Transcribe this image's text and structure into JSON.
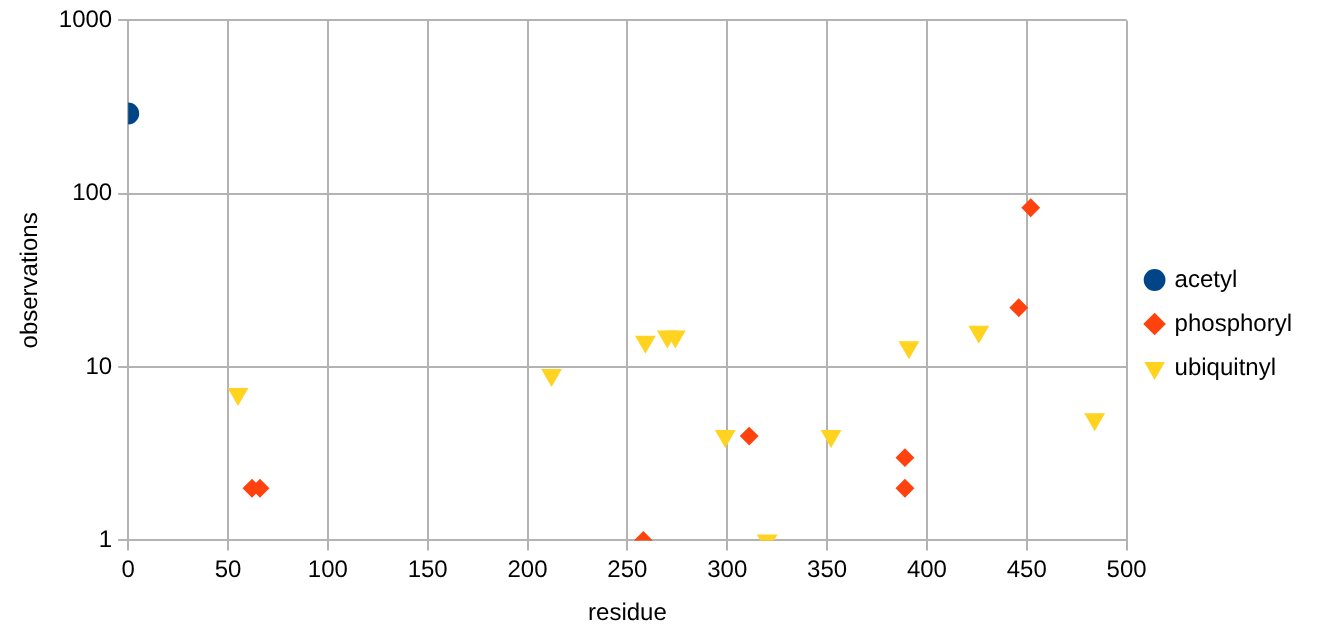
{
  "chart_data": {
    "type": "scatter",
    "xlabel": "residue",
    "ylabel": "observations",
    "log": "y",
    "grid": true,
    "legend": "right",
    "xlim": [
      0,
      500
    ],
    "xticks": [
      0,
      50,
      100,
      150,
      200,
      250,
      300,
      350,
      400,
      450,
      500
    ],
    "ylim": [
      1,
      1000
    ],
    "yticks": [
      1,
      10,
      100,
      1000
    ],
    "series": [
      {
        "name": "acetyl",
        "color": "#004586",
        "marker": "circle",
        "x": [
          0
        ],
        "values": [
          290
        ]
      },
      {
        "name": "phosphoryl",
        "color": "#ff420e",
        "marker": "diamond",
        "x": [
          62,
          66,
          258,
          311,
          389,
          389,
          446,
          452
        ],
        "values": [
          2,
          2,
          1,
          4,
          3,
          2,
          22,
          83
        ]
      },
      {
        "name": "ubiquitnyl",
        "color": "#ffd320",
        "marker": "triangle",
        "x": [
          55,
          212,
          259,
          270,
          274,
          299,
          320,
          352,
          391,
          426,
          484
        ],
        "values": [
          7,
          9,
          14,
          15,
          15,
          4,
          1,
          4,
          13,
          16,
          5
        ]
      }
    ]
  }
}
